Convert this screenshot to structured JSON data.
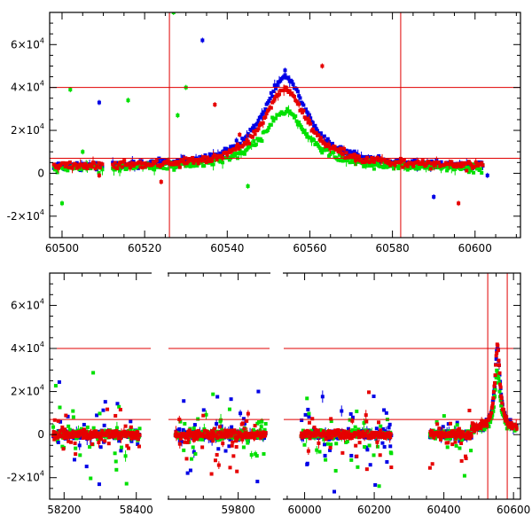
{
  "chart_data": [
    {
      "type": "scatter",
      "title": "",
      "xlabel": "",
      "ylabel": "",
      "xlim": [
        60497,
        60611
      ],
      "ylim": [
        -30000,
        75000
      ],
      "x_ticks": [
        60500,
        60520,
        60540,
        60560,
        60580,
        60600
      ],
      "x_tick_labels": [
        "60500",
        "60520",
        "60540",
        "60560",
        "60580",
        "60600"
      ],
      "y_ticks": [
        -20000,
        0,
        20000,
        40000,
        60000
      ],
      "y_tick_labels": [
        {
          "value": -20000,
          "mantissa": "-2×10",
          "exp": "4"
        },
        {
          "value": 0,
          "mantissa": "0",
          "exp": ""
        },
        {
          "value": 20000,
          "mantissa": "2×10",
          "exp": "4"
        },
        {
          "value": 40000,
          "mantissa": "4×10",
          "exp": "4"
        },
        {
          "value": 60000,
          "mantissa": "6×10",
          "exp": "4"
        }
      ],
      "hlines": [
        40000,
        7000
      ],
      "vlines": [
        60526,
        60582
      ],
      "series": [
        {
          "name": "blue",
          "color": "#0000e6",
          "model": {
            "baseline": 3000,
            "amplitude": 42000,
            "t0": 60554,
            "width": 6.5
          },
          "outliers": [
            [
              60509,
              33000
            ],
            [
              60534,
              62000
            ],
            [
              60554,
              48000
            ],
            [
              60586,
              2000
            ],
            [
              60590,
              -11000
            ],
            [
              60603,
              -1000
            ]
          ]
        },
        {
          "name": "green",
          "color": "#00e000",
          "model": {
            "baseline": 2000,
            "amplitude": 27000,
            "t0": 60554,
            "width": 6.5
          },
          "outliers": [
            [
              60502,
              39000
            ],
            [
              60500,
              -14000
            ],
            [
              60516,
              34000
            ],
            [
              60527,
              75000
            ],
            [
              60530,
              40000
            ],
            [
              60528,
              27000
            ],
            [
              60586,
              4000
            ],
            [
              60505,
              10000
            ],
            [
              60545,
              -6000
            ]
          ]
        },
        {
          "name": "red",
          "color": "#e60000",
          "model": {
            "baseline": 3000,
            "amplitude": 36000,
            "t0": 60554,
            "width": 6.5
          },
          "outliers": [
            [
              60537,
              32000
            ],
            [
              60543,
              18000
            ],
            [
              60563,
              50000
            ],
            [
              60596,
              -14000
            ],
            [
              60509,
              -1000
            ],
            [
              60524,
              -4000
            ]
          ]
        }
      ]
    },
    {
      "type": "scatter",
      "title": "",
      "xlabel": "",
      "ylabel": "",
      "ylim": [
        -30000,
        75000
      ],
      "x_segments": [
        {
          "range": [
            58160,
            58440
          ],
          "ticks": [
            58200,
            58400
          ],
          "labels": [
            "58200",
            "58400"
          ]
        },
        {
          "range": [
            59600,
            59890
          ],
          "ticks": [
            59800
          ],
          "labels": [
            "59800"
          ]
        },
        {
          "range": [
            59940,
            60620
          ],
          "ticks": [
            60000,
            60200,
            60400,
            60600
          ],
          "labels": [
            "60000",
            "60200",
            "60400",
            "60600"
          ]
        }
      ],
      "y_ticks": [
        -20000,
        0,
        20000,
        40000,
        60000
      ],
      "y_tick_labels": [
        {
          "value": -20000,
          "mantissa": "-2×10",
          "exp": "4"
        },
        {
          "value": 0,
          "mantissa": "0",
          "exp": ""
        },
        {
          "value": 20000,
          "mantissa": "2×10",
          "exp": "4"
        },
        {
          "value": 40000,
          "mantissa": "4×10",
          "exp": "4"
        },
        {
          "value": 60000,
          "mantissa": "6×10",
          "exp": "4"
        }
      ],
      "hlines": [
        40000,
        7000
      ],
      "vlines": [
        60526,
        60582
      ],
      "seasons": [
        [
          58170,
          58410
        ],
        [
          59620,
          59880
        ],
        [
          59990,
          60250
        ],
        [
          60360,
          60610
        ]
      ],
      "series": [
        {
          "name": "blue",
          "color": "#0000e6"
        },
        {
          "name": "green",
          "color": "#00e000"
        },
        {
          "name": "red",
          "color": "#e60000"
        }
      ]
    }
  ]
}
